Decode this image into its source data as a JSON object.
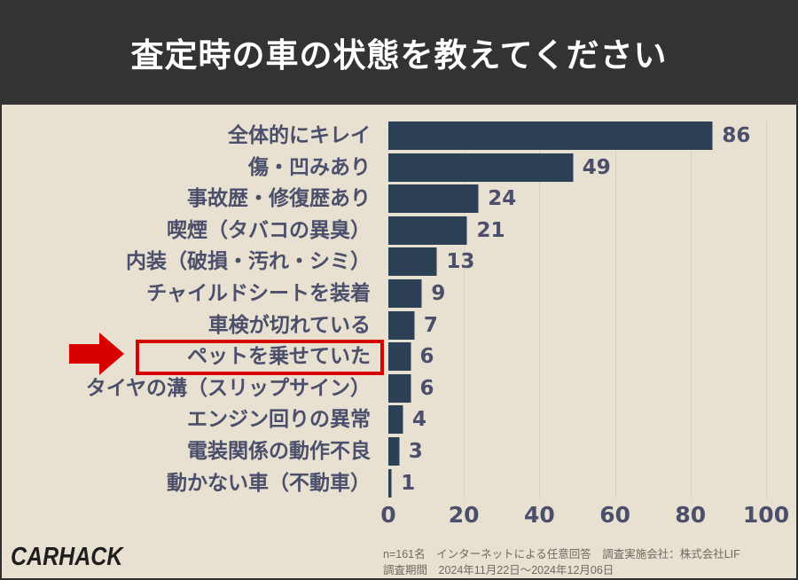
{
  "header": {
    "title": "査定時の車の状態を教えてください"
  },
  "chart_data": {
    "type": "bar",
    "orientation": "horizontal",
    "title": "査定時の車の状態を教えてください",
    "categories": [
      "全体的にキレイ",
      "傷・凹みあり",
      "事故歴・修復歴あり",
      "喫煙（タバコの異臭）",
      "内装（破損・汚れ・シミ）",
      "チャイルドシートを装着",
      "車検が切れている",
      "ペットを乗せていた",
      "タイヤの溝（スリップサイン）",
      "エンジン回りの異常",
      "電装関係の動作不良",
      "動かない車（不動車）"
    ],
    "values": [
      86,
      49,
      24,
      21,
      13,
      9,
      7,
      6,
      6,
      4,
      3,
      1
    ],
    "xlabel": "",
    "ylabel": "",
    "xlim": [
      0,
      100
    ],
    "x_ticks": [
      "0",
      "20",
      "40",
      "60",
      "80",
      "100"
    ],
    "grid": true,
    "highlighted_category": "ペットを乗せていた",
    "bar_color": "#2d4156",
    "highlight_color": "#d60000"
  },
  "footer": {
    "logo": "CARHACK",
    "note_line1": "n=161名　インターネットによる任意回答　調査実施会社：株式会社LIF",
    "note_line2": "調査期間　2024年11月22日～2024年12月06日"
  }
}
